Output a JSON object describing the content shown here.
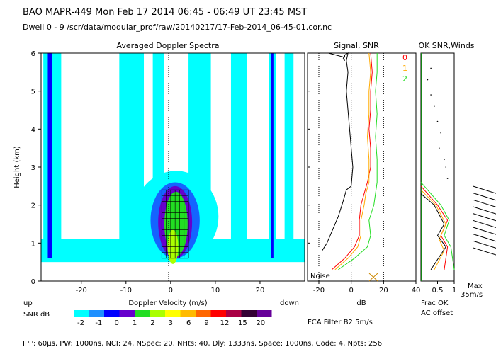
{
  "header": {
    "line1": "BAO  MAPR-449  Mon Feb 17 2014 06:45 - 06:49 UT 23:45 MST",
    "line2": "Dwell  0 - 9   /scr/data/modular_prof/raw/20140217/17-Feb-2014_06-45-01.cor.nc"
  },
  "footer": {
    "params": "IPP: 60μs,  PW: 1000ns,  NCI: 24,  NSpec: 20, NHts: 40,  Dly: 1333ns,  Space: 1000ns,  Code: 4,  Npts: 256",
    "filter": "FCA Filter B2  5m/s"
  },
  "colors": {
    "snr_scale": [
      "#00ffff",
      "#1464ff",
      "#0000ff",
      "#6600cc",
      "#22dd22",
      "#aaff00",
      "#ffff00",
      "#ffbb00",
      "#ff6600",
      "#ff0000",
      "#aa0044",
      "#330033",
      "#660099"
    ],
    "series0": "#ff0000",
    "series1": "#ffaa00",
    "series2": "#22dd22"
  },
  "chart_data": [
    {
      "type": "heatmap",
      "title": "Averaged Doppler Spectra",
      "xlabel": "Doppler Velocity (m/s)",
      "ylabel": "Height (km)",
      "xlim": [
        -29,
        30
      ],
      "ylim": [
        0,
        6
      ],
      "xticks": [
        -20,
        -10,
        0,
        10,
        20
      ],
      "yticks": [
        0,
        1,
        2,
        3,
        4,
        5,
        6
      ],
      "left_label": "up",
      "right_label": "down",
      "colorbar": {
        "label": "SNR dB",
        "ticks": [
          "-2",
          "-1",
          "0",
          "1",
          "2",
          "3",
          "6",
          "9",
          "12",
          "15",
          "20"
        ]
      }
    },
    {
      "type": "line",
      "title": "Signal, SNR",
      "xlabel": "dB",
      "xticks": [
        -20,
        0,
        20,
        40
      ],
      "xlim": [
        -27,
        40
      ],
      "ylim": [
        0,
        6
      ],
      "noise_label": "Noise",
      "series": [
        {
          "name": "",
          "color": "#000000",
          "x": [
            -18,
            -15,
            -12,
            -8,
            -5,
            -3,
            0,
            1,
            0,
            -1,
            -2,
            -3,
            -2,
            -3,
            -2,
            -4,
            -4,
            -5,
            -4,
            -5,
            -14
          ],
          "y": [
            0.8,
            1.0,
            1.3,
            1.7,
            2.1,
            2.4,
            2.5,
            3.0,
            3.5,
            4.0,
            4.5,
            5.0,
            5.5,
            5.8,
            6.0,
            5.95,
            5.9,
            5.85,
            5.8,
            5.9,
            6.0
          ]
        },
        {
          "name": "0",
          "color": "#ff0000",
          "x": [
            -12,
            -4,
            2,
            5,
            5,
            6,
            8,
            10,
            12,
            12,
            11,
            12,
            12,
            13,
            12
          ],
          "y": [
            0.3,
            0.6,
            0.9,
            1.2,
            1.6,
            2.0,
            2.3,
            2.6,
            3.0,
            3.5,
            4.0,
            4.5,
            5.0,
            5.5,
            6.0
          ]
        },
        {
          "name": "1",
          "color": "#ffaa00",
          "x": [
            -10,
            -2,
            4,
            6,
            6,
            8,
            9,
            11,
            11,
            10,
            11,
            11,
            12,
            11
          ],
          "y": [
            0.3,
            0.6,
            0.9,
            1.2,
            1.6,
            2.0,
            2.3,
            2.6,
            3.2,
            3.8,
            4.4,
            5.0,
            5.5,
            6.0
          ]
        },
        {
          "name": "2",
          "color": "#22dd22",
          "x": [
            -8,
            2,
            10,
            12,
            11,
            14,
            15,
            16,
            16,
            15,
            16,
            15,
            16,
            16
          ],
          "y": [
            0.3,
            0.6,
            0.9,
            1.2,
            1.6,
            2.0,
            2.3,
            2.6,
            3.2,
            3.8,
            4.4,
            5.0,
            5.5,
            6.0
          ]
        }
      ]
    },
    {
      "type": "line",
      "title": "OK SNR,Winds",
      "xticks": [
        "0.5",
        "1"
      ],
      "legend": [
        "Frac OK",
        "AC offset"
      ],
      "max_label": "Max",
      "max_value": "35m/s"
    }
  ]
}
